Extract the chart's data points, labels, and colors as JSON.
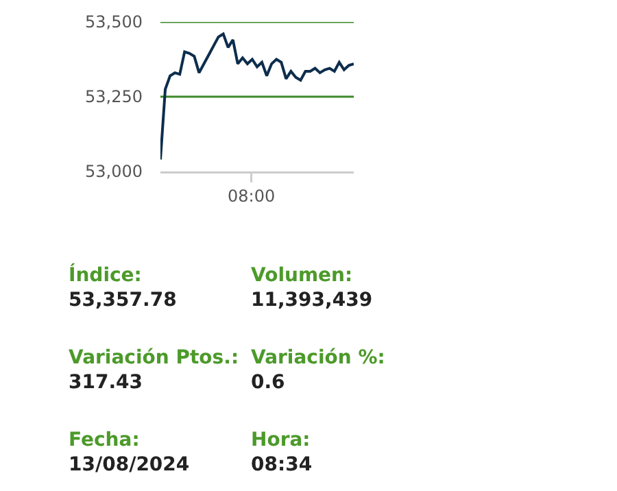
{
  "chart_data": [
    {
      "type": "line",
      "categories": [
        null,
        null,
        null,
        null,
        null,
        null,
        null,
        null,
        null,
        null,
        null,
        null,
        null,
        null,
        null,
        null,
        null,
        null,
        null,
        null,
        null,
        null,
        null,
        null,
        null,
        null,
        null,
        null,
        null,
        null,
        null,
        null,
        null,
        null,
        null,
        null,
        null,
        null,
        null,
        null,
        null
      ],
      "series": [
        {
          "color": "#0d2d4d",
          "values": [
            53040,
            53275,
            53320,
            53330,
            53325,
            53400,
            53395,
            53385,
            53330,
            53360,
            53390,
            53420,
            53450,
            53460,
            53415,
            53440,
            53360,
            53380,
            53360,
            53375,
            53350,
            53365,
            53320,
            53360,
            53375,
            53365,
            53310,
            53335,
            53315,
            53305,
            53335,
            53335,
            53345,
            53330,
            53340,
            53345,
            53335,
            53365,
            53340,
            53355,
            53360
          ]
        }
      ],
      "annotations": [
        "08:00"
      ],
      "ylim": [
        53000,
        53500
      ],
      "yticks": [
        {
          "value": 53000,
          "label": "53,000"
        },
        {
          "value": 53250,
          "label": "53,250"
        },
        {
          "value": 53500,
          "label": "53,500"
        }
      ],
      "ref_lines": [
        {
          "axis": "y",
          "value": 53500,
          "color": "#3d8a2a"
        },
        {
          "axis": "y",
          "value": 53250,
          "color": "#3d8a2a"
        }
      ],
      "legend": false,
      "marker": "none",
      "line_style": "solid"
    },
    {
      "type": "other",
      "annotations": [
        "Índice:",
        "53,357.78",
        "Volumen:",
        "11,393,439",
        "Variación Ptos.:",
        "317.43",
        "Variación %:",
        "0.6",
        "Fecha:",
        "13/08/2024",
        "Hora:",
        "08:34"
      ]
    }
  ]
}
